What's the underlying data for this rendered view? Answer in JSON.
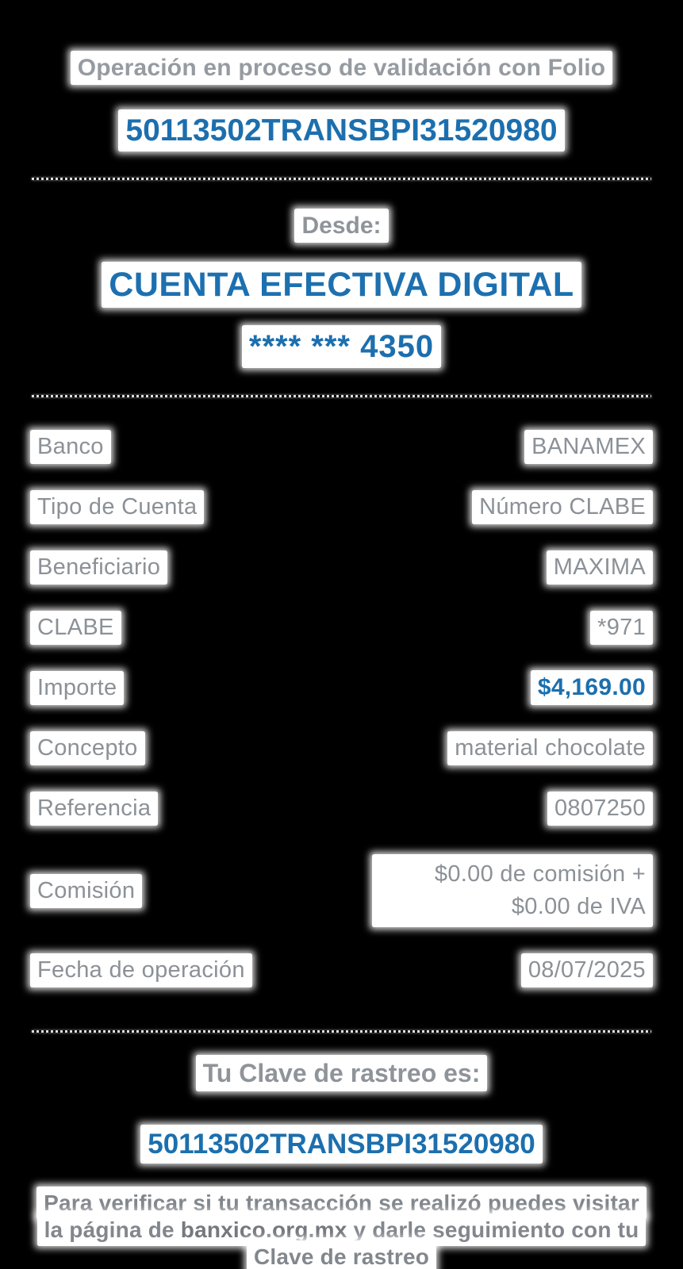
{
  "colors": {
    "background": "#000000",
    "accent_blue": "#1c6fae",
    "label_gray": "#8b9197",
    "halo_white": "#ffffff",
    "divider_gray": "#dedede"
  },
  "header": {
    "status_line": "Operación en proceso de validación con Folio",
    "folio": "50113502TRANSBPI31520980"
  },
  "source": {
    "label": "Desde:",
    "account_name": "CUENTA EFECTIVA DIGITAL",
    "account_mask": "**** *** 4350"
  },
  "details": {
    "rows": [
      {
        "label": "Banco",
        "value": "BANAMEX"
      },
      {
        "label": "Tipo de Cuenta",
        "value": "Número CLABE"
      },
      {
        "label": "Beneficiario",
        "value": "MAXIMA"
      },
      {
        "label": "CLABE",
        "value": "*971"
      },
      {
        "label": "Importe",
        "value": "$4,169.00"
      },
      {
        "label": "Concepto",
        "value": "material chocolate"
      },
      {
        "label": "Referencia",
        "value": "0807250"
      },
      {
        "label": "Comisión",
        "value": "$0.00 de comisión + $0.00 de IVA"
      },
      {
        "label": "Fecha de operación",
        "value": "08/07/2025"
      }
    ]
  },
  "tracking": {
    "title": "Tu Clave de rastreo es:",
    "key": "50113502TRANSBPI31520980"
  },
  "footer": {
    "note_before": "Para verificar si tu transacción se realizó puedes visitar la página de ",
    "note_link": "banxico.org.mx",
    "note_after": " y darle seguimiento con tu Clave de rastreo"
  }
}
